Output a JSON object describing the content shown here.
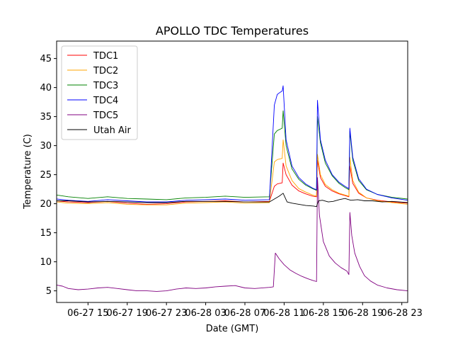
{
  "chart_data": {
    "type": "line",
    "title": "APOLLO TDC Temperatures",
    "xlabel": "Date (GMT)",
    "ylabel": "Temperature (C)",
    "x_unit": "hours since 06-27 00:00 GMT",
    "xlim": [
      11.8,
      47.6
    ],
    "ylim": [
      3.0,
      48.0
    ],
    "grid": false,
    "legend_position": "upper-left",
    "xticks": [
      {
        "value": 15,
        "label": "06-27 15"
      },
      {
        "value": 19,
        "label": "06-27 19"
      },
      {
        "value": 23,
        "label": "06-27 23"
      },
      {
        "value": 27,
        "label": "06-28 03"
      },
      {
        "value": 31,
        "label": "06-28 07"
      },
      {
        "value": 35,
        "label": "06-28 11"
      },
      {
        "value": 39,
        "label": "06-28 15"
      },
      {
        "value": 43,
        "label": "06-28 19"
      },
      {
        "value": 47,
        "label": "06-28 23"
      }
    ],
    "yticks": [
      {
        "value": 5,
        "label": "5"
      },
      {
        "value": 10,
        "label": "10"
      },
      {
        "value": 15,
        "label": "15"
      },
      {
        "value": 20,
        "label": "20"
      },
      {
        "value": 25,
        "label": "25"
      },
      {
        "value": 30,
        "label": "30"
      },
      {
        "value": 35,
        "label": "35"
      },
      {
        "value": 40,
        "label": "40"
      },
      {
        "value": 45,
        "label": "45"
      }
    ],
    "series": [
      {
        "name": "TDC1",
        "color": "#ff0000",
        "x": [
          11.8,
          13.0,
          15.0,
          17.0,
          19.0,
          21.0,
          23.0,
          25.0,
          27.0,
          29.0,
          31.0,
          33.5,
          34.0,
          34.3,
          34.8,
          34.9,
          35.2,
          35.8,
          36.5,
          37.2,
          37.9,
          38.3,
          38.4,
          38.7,
          39.2,
          39.9,
          40.6,
          41.2,
          41.6,
          41.7,
          42.0,
          42.6,
          43.4,
          44.5,
          46.0,
          47.6
        ],
        "y": [
          20.5,
          20.3,
          20.2,
          20.4,
          20.1,
          19.9,
          20.0,
          20.3,
          20.4,
          20.5,
          20.3,
          20.4,
          23.0,
          23.4,
          23.6,
          27.0,
          25.0,
          23.2,
          22.2,
          21.7,
          21.3,
          21.2,
          27.5,
          24.5,
          23.0,
          22.2,
          21.7,
          21.4,
          21.2,
          26.5,
          23.5,
          21.8,
          21.0,
          20.6,
          20.3,
          20.1
        ]
      },
      {
        "name": "TDC2",
        "color": "#ffa500",
        "x": [
          11.8,
          13.0,
          15.0,
          17.0,
          19.0,
          21.0,
          23.0,
          25.0,
          27.0,
          29.0,
          31.0,
          33.5,
          34.0,
          34.3,
          34.8,
          34.9,
          35.2,
          35.8,
          36.5,
          37.2,
          37.9,
          38.3,
          38.4,
          38.7,
          39.2,
          39.9,
          40.6,
          41.2,
          41.6,
          41.7,
          42.0,
          42.6,
          43.4,
          44.5,
          46.0,
          47.6
        ],
        "y": [
          20.3,
          20.1,
          20.0,
          20.2,
          19.9,
          19.8,
          19.8,
          20.1,
          20.2,
          20.3,
          20.1,
          20.2,
          27.2,
          27.6,
          27.8,
          31.0,
          26.5,
          24.0,
          22.6,
          22.0,
          21.5,
          21.3,
          28.5,
          25.0,
          23.3,
          22.4,
          21.8,
          21.5,
          21.3,
          28.0,
          24.0,
          22.0,
          21.0,
          20.5,
          20.2,
          19.9
        ]
      },
      {
        "name": "TDC3",
        "color": "#008000",
        "x": [
          11.8,
          13.0,
          15.0,
          17.0,
          19.0,
          21.0,
          23.0,
          25.0,
          27.0,
          29.0,
          31.0,
          33.5,
          34.0,
          34.3,
          34.8,
          34.9,
          35.2,
          35.8,
          36.5,
          37.2,
          37.9,
          38.3,
          38.4,
          38.7,
          39.2,
          39.9,
          40.6,
          41.2,
          41.6,
          41.7,
          42.0,
          42.6,
          43.4,
          44.5,
          46.0,
          47.6
        ],
        "y": [
          21.5,
          21.2,
          20.9,
          21.2,
          20.9,
          20.8,
          20.7,
          21.0,
          21.1,
          21.3,
          21.1,
          21.2,
          32.0,
          32.6,
          33.0,
          36.0,
          30.0,
          26.0,
          24.2,
          23.2,
          22.6,
          22.3,
          35.0,
          30.5,
          27.0,
          24.8,
          23.5,
          22.8,
          22.4,
          32.5,
          27.5,
          24.0,
          22.4,
          21.6,
          21.1,
          20.8
        ]
      },
      {
        "name": "TDC4",
        "color": "#0000ff",
        "x": [
          11.8,
          13.0,
          15.0,
          17.0,
          19.0,
          21.0,
          23.0,
          25.0,
          27.0,
          29.0,
          31.0,
          33.5,
          34.0,
          34.3,
          34.6,
          34.8,
          34.9,
          35.2,
          35.8,
          36.5,
          37.2,
          37.9,
          38.3,
          38.4,
          38.7,
          39.2,
          39.9,
          40.6,
          41.2,
          41.6,
          41.7,
          42.0,
          42.6,
          43.4,
          44.5,
          46.0,
          47.6
        ],
        "y": [
          20.8,
          20.6,
          20.4,
          20.7,
          20.5,
          20.3,
          20.3,
          20.6,
          20.7,
          20.8,
          20.6,
          20.7,
          37.0,
          38.8,
          39.2,
          39.4,
          40.3,
          31.0,
          26.5,
          24.5,
          23.4,
          22.7,
          22.4,
          37.8,
          31.0,
          27.5,
          25.0,
          23.7,
          23.0,
          22.6,
          33.0,
          28.0,
          24.3,
          22.5,
          21.6,
          21.0,
          20.6
        ]
      },
      {
        "name": "TDC5",
        "color": "#800080",
        "x": [
          11.8,
          12.4,
          13.0,
          14.0,
          15.0,
          16.0,
          17.0,
          18.0,
          19.0,
          20.0,
          21.0,
          22.0,
          23.0,
          24.0,
          25.0,
          26.0,
          27.0,
          28.0,
          29.0,
          30.0,
          31.0,
          32.0,
          33.5,
          33.9,
          34.1,
          34.5,
          35.0,
          35.6,
          36.2,
          36.8,
          37.4,
          37.9,
          38.3,
          38.4,
          38.6,
          39.0,
          39.6,
          40.2,
          40.8,
          41.4,
          41.6,
          41.7,
          41.9,
          42.2,
          42.7,
          43.2,
          43.8,
          44.5,
          45.5,
          46.5,
          47.6
        ],
        "y": [
          6.0,
          5.8,
          5.4,
          5.2,
          5.3,
          5.5,
          5.6,
          5.4,
          5.2,
          5.0,
          5.0,
          4.9,
          5.0,
          5.3,
          5.5,
          5.4,
          5.5,
          5.7,
          5.8,
          5.9,
          5.5,
          5.4,
          5.6,
          5.7,
          11.5,
          10.5,
          9.5,
          8.6,
          8.0,
          7.5,
          7.1,
          6.8,
          6.6,
          24.5,
          18.0,
          13.5,
          11.0,
          9.8,
          9.0,
          8.4,
          7.8,
          18.5,
          14.5,
          11.5,
          9.2,
          7.6,
          6.7,
          6.0,
          5.5,
          5.2,
          5.0
        ]
      },
      {
        "name": "Utah Air",
        "color": "#000000",
        "x": [
          11.8,
          13.0,
          15.0,
          17.0,
          19.0,
          21.0,
          23.0,
          25.0,
          27.0,
          29.0,
          31.0,
          33.5,
          34.0,
          34.5,
          34.9,
          35.3,
          35.8,
          36.5,
          37.2,
          38.0,
          38.3,
          38.5,
          38.9,
          39.5,
          40.0,
          40.6,
          41.2,
          41.8,
          42.5,
          43.2,
          44.0,
          45.0,
          46.0,
          47.6
        ],
        "y": [
          20.5,
          20.5,
          20.3,
          20.4,
          20.3,
          20.2,
          20.2,
          20.4,
          20.4,
          20.4,
          20.3,
          20.3,
          20.8,
          21.3,
          21.8,
          20.3,
          20.1,
          19.9,
          19.7,
          19.6,
          19.5,
          20.5,
          20.6,
          20.3,
          20.4,
          20.7,
          20.9,
          20.6,
          20.7,
          20.5,
          20.5,
          20.3,
          20.4,
          20.2
        ]
      }
    ]
  }
}
